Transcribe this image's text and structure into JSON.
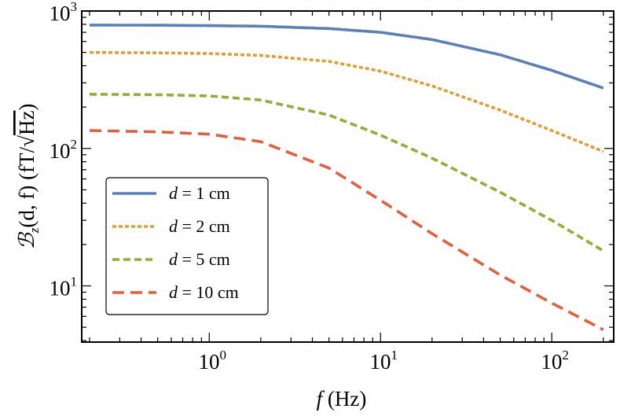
{
  "chart_data": {
    "type": "line",
    "xscale": "log",
    "yscale": "log",
    "xlim": [
      0.18,
      230
    ],
    "ylim": [
      3.9,
      1000
    ],
    "xlabel_var": "f",
    "xlabel_unit": "(Hz)",
    "ylabel_var": "ℬ",
    "ylabel_sub": "z",
    "ylabel_args": "(d, f)",
    "ylabel_unit_pre": "(fT/",
    "ylabel_unit_sqrt": "√",
    "ylabel_unit_hz": "Hz",
    "ylabel_unit_post": ")",
    "x_ticks": [
      {
        "value": 1,
        "base": "10",
        "exp": "0"
      },
      {
        "value": 10,
        "base": "10",
        "exp": "1"
      },
      {
        "value": 100,
        "base": "10",
        "exp": "2"
      }
    ],
    "y_ticks": [
      {
        "value": 10,
        "base": "10",
        "exp": "1"
      },
      {
        "value": 100,
        "base": "10",
        "exp": "2"
      },
      {
        "value": 1000,
        "base": "10",
        "exp": "3"
      }
    ],
    "legend_position": "lower-left",
    "series": [
      {
        "name": "d = 1 cm",
        "var": "d",
        "rest": "= 1 cm",
        "color": "#5a80b8",
        "dash": "solid",
        "x": [
          0.2,
          0.5,
          1,
          2,
          5,
          10,
          20,
          50,
          100,
          200
        ],
        "values": [
          790,
          788,
          783,
          775,
          745,
          700,
          620,
          480,
          370,
          275
        ]
      },
      {
        "name": "d = 2 cm",
        "var": "d",
        "rest": "= 2 cm",
        "color": "#e0a030",
        "dash": "short",
        "x": [
          0.2,
          0.5,
          1,
          2,
          5,
          10,
          20,
          50,
          100,
          200
        ],
        "values": [
          500,
          496,
          490,
          475,
          430,
          365,
          285,
          190,
          135,
          95
        ]
      },
      {
        "name": "d = 5 cm",
        "var": "d",
        "rest": "= 5 cm",
        "color": "#8fb032",
        "dash": "medium",
        "x": [
          0.2,
          0.5,
          1,
          2,
          5,
          10,
          20,
          50,
          100,
          200
        ],
        "values": [
          248,
          246,
          241,
          225,
          175,
          125,
          85,
          48,
          30,
          18
        ]
      },
      {
        "name": "d = 10 cm",
        "var": "d",
        "rest": "= 10 cm",
        "color": "#e65f3c",
        "dash": "long",
        "x": [
          0.2,
          0.5,
          1,
          2,
          5,
          10,
          20,
          50,
          100,
          200
        ],
        "values": [
          135,
          132,
          127,
          112,
          72,
          42,
          24,
          12,
          7.5,
          4.8
        ]
      }
    ]
  }
}
